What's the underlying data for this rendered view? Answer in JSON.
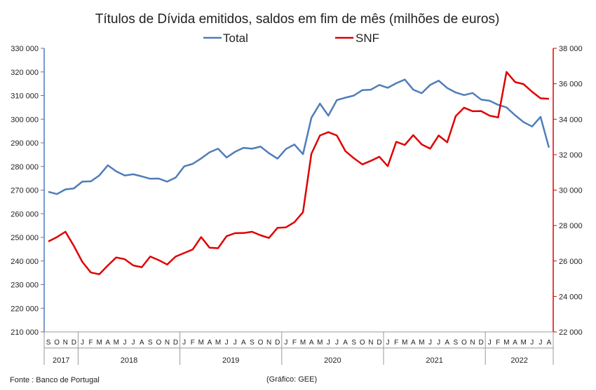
{
  "chart_data": {
    "type": "line",
    "title": "Títulos de Dívida emitidos, saldos em fim de mês  (milhões de euros)",
    "source": "Fonte : Banco de Portugal",
    "credit": "(Gráfico: GEE)",
    "colors": {
      "Total": "#4F7DB8",
      "SNF": "#E00000"
    },
    "y_left": {
      "min": 210000,
      "max": 330000,
      "step": 10000,
      "ticks": [
        "210 000",
        "220 000",
        "230 000",
        "240 000",
        "250 000",
        "260 000",
        "270 000",
        "280 000",
        "290 000",
        "300 000",
        "310 000",
        "320 000",
        "330 000"
      ]
    },
    "y_right": {
      "min": 22000,
      "max": 38000,
      "step": 2000,
      "ticks": [
        "22 000",
        "24 000",
        "26 000",
        "28 000",
        "30 000",
        "32 000",
        "34 000",
        "36 000",
        "38 000"
      ]
    },
    "months": [
      "S",
      "O",
      "N",
      "D",
      "J",
      "F",
      "M",
      "A",
      "M",
      "J",
      "J",
      "A",
      "S",
      "O",
      "N",
      "D",
      "J",
      "F",
      "M",
      "A",
      "M",
      "J",
      "J",
      "A",
      "S",
      "O",
      "N",
      "D",
      "J",
      "F",
      "M",
      "A",
      "M",
      "J",
      "J",
      "A",
      "S",
      "O",
      "N",
      "D",
      "J",
      "F",
      "M",
      "A",
      "M",
      "J",
      "J",
      "A",
      "S",
      "O",
      "N",
      "D",
      "J",
      "F",
      "M",
      "A",
      "M",
      "J",
      "J",
      "A"
    ],
    "years": [
      {
        "label": "2017",
        "start": 0,
        "count": 4
      },
      {
        "label": "2018",
        "start": 4,
        "count": 12
      },
      {
        "label": "2019",
        "start": 16,
        "count": 12
      },
      {
        "label": "2020",
        "start": 28,
        "count": 12
      },
      {
        "label": "2021",
        "start": 40,
        "count": 12
      },
      {
        "label": "2022",
        "start": 52,
        "count": 8
      }
    ],
    "series": [
      {
        "name": "Total",
        "axis": "left",
        "values": [
          269300,
          268300,
          270300,
          270700,
          273600,
          273700,
          276200,
          280500,
          277900,
          276200,
          276700,
          275800,
          274800,
          274900,
          273600,
          275300,
          280000,
          281100,
          283400,
          286000,
          287500,
          283800,
          286200,
          287900,
          287500,
          288400,
          285600,
          283300,
          287400,
          289300,
          285200,
          300600,
          306600,
          301500,
          308100,
          309100,
          310000,
          312300,
          312500,
          314500,
          313300,
          315200,
          316800,
          312500,
          311000,
          314500,
          316300,
          313200,
          311300,
          310200,
          311100,
          308300,
          307800,
          306100,
          305000,
          301700,
          298800,
          296900,
          301000,
          288000
        ]
      },
      {
        "name": "SNF",
        "axis": "right",
        "values": [
          27100,
          27350,
          27650,
          26850,
          25950,
          25350,
          25250,
          25750,
          26200,
          26100,
          25750,
          25650,
          26250,
          26050,
          25800,
          26250,
          26450,
          26650,
          27350,
          26750,
          26720,
          27400,
          27570,
          27580,
          27650,
          27450,
          27300,
          27870,
          27900,
          28190,
          28750,
          32050,
          33080,
          33270,
          33080,
          32200,
          31800,
          31450,
          31650,
          31880,
          31350,
          32720,
          32550,
          33100,
          32580,
          32340,
          33080,
          32700,
          34170,
          34650,
          34450,
          34460,
          34200,
          34100,
          36670,
          36100,
          35980,
          35550,
          35180,
          35150
        ]
      }
    ]
  }
}
